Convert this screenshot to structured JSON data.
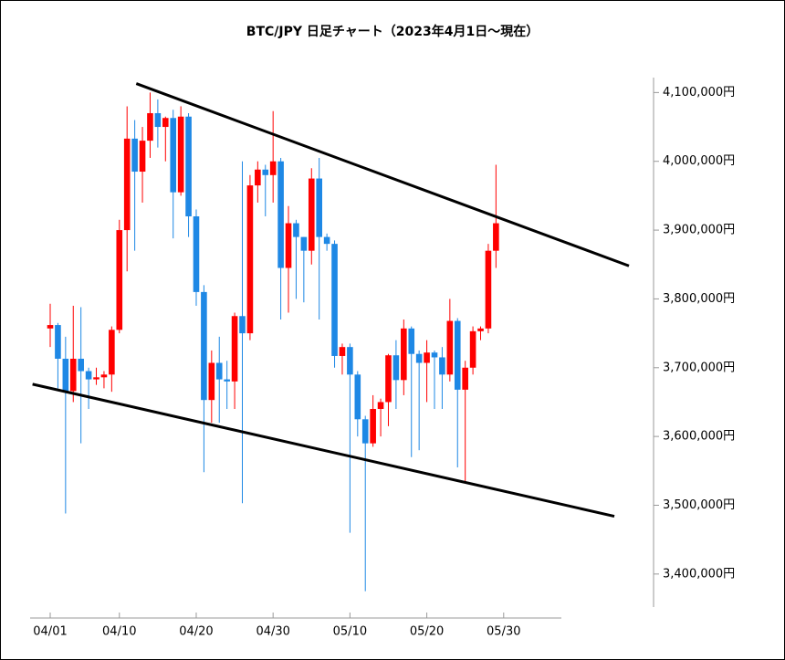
{
  "chart_data": {
    "type": "candlestick",
    "title": "BTC/JPY 日足チャート（2023年4月1日～現在）",
    "categories": [
      "04/01",
      null,
      null,
      null,
      null,
      null,
      null,
      null,
      null,
      "04/10",
      null,
      null,
      null,
      null,
      null,
      null,
      null,
      null,
      null,
      "04/20",
      null,
      null,
      null,
      null,
      null,
      null,
      null,
      null,
      null,
      "04/30",
      null,
      null,
      null,
      null,
      null,
      null,
      null,
      null,
      null,
      "05/10",
      null,
      null,
      null,
      null,
      null,
      null,
      null,
      null,
      null,
      "05/20",
      null,
      null,
      null,
      null,
      null,
      null,
      null,
      null,
      null,
      "05/30"
    ],
    "open": [
      3757000,
      3762000,
      3713000,
      3666000,
      3713000,
      3695000,
      3683000,
      3686000,
      3690000,
      3755000,
      3900000,
      4033000,
      3985000,
      4030000,
      4070000,
      4050000,
      4063000,
      3955000,
      4065000,
      3920000,
      3810000,
      3653000,
      3707000,
      3683000,
      3680000,
      3775000,
      3750000,
      3965000,
      3988000,
      3980000,
      4000000,
      3845000,
      3910000,
      3890000,
      3870000,
      3975000,
      3890000,
      3880000,
      3717000,
      3730000,
      3690000,
      3625000,
      3590000,
      3640000,
      3650000,
      3718000,
      3682000,
      3757000,
      3720000,
      3707000,
      3722000,
      3715000,
      3690000,
      3768000,
      3668000,
      3700000,
      3753000,
      3757000,
      3870000,
      null
    ],
    "high": [
      3793000,
      3765000,
      3745000,
      3790000,
      3788000,
      3700000,
      3700000,
      3695000,
      3760000,
      3915000,
      4080000,
      4060000,
      4050000,
      4100000,
      4090000,
      4065000,
      4075000,
      4080000,
      4070000,
      3930000,
      3820000,
      3725000,
      3745000,
      3710000,
      3780000,
      4000000,
      3980000,
      4000000,
      3995000,
      4073000,
      4005000,
      3935000,
      3915000,
      3890000,
      3990000,
      4005000,
      3895000,
      3885000,
      3735000,
      3735000,
      3695000,
      3630000,
      3660000,
      3655000,
      3720000,
      3740000,
      3770000,
      3760000,
      3725000,
      3740000,
      3725000,
      3730000,
      3800000,
      3772000,
      3710000,
      3760000,
      3760000,
      3880000,
      3995000,
      null
    ],
    "low": [
      3730000,
      3670000,
      3488000,
      3650000,
      3590000,
      3640000,
      3675000,
      3670000,
      3665000,
      3750000,
      3840000,
      3870000,
      3940000,
      4005000,
      4020000,
      4000000,
      3888000,
      3950000,
      3890000,
      3790000,
      3548000,
      3620000,
      3620000,
      3640000,
      3640000,
      3503000,
      3740000,
      3940000,
      3920000,
      3940000,
      3770000,
      3780000,
      3800000,
      3795000,
      3850000,
      3770000,
      3870000,
      3700000,
      3690000,
      3460000,
      3600000,
      3375000,
      3585000,
      3600000,
      3615000,
      3640000,
      3660000,
      3570000,
      3580000,
      3650000,
      3640000,
      3640000,
      3680000,
      3555000,
      3533000,
      3690000,
      3740000,
      3750000,
      3845000,
      null
    ],
    "close": [
      3762000,
      3713000,
      3666000,
      3713000,
      3695000,
      3683000,
      3686000,
      3690000,
      3755000,
      3900000,
      4033000,
      3985000,
      4030000,
      4070000,
      4050000,
      4063000,
      3955000,
      4065000,
      3920000,
      3810000,
      3653000,
      3707000,
      3683000,
      3680000,
      3775000,
      3750000,
      3965000,
      3988000,
      3980000,
      4000000,
      3845000,
      3910000,
      3890000,
      3870000,
      3975000,
      3890000,
      3880000,
      3717000,
      3730000,
      3690000,
      3625000,
      3590000,
      3640000,
      3650000,
      3718000,
      3682000,
      3757000,
      3720000,
      3707000,
      3722000,
      3715000,
      3690000,
      3768000,
      3668000,
      3700000,
      3753000,
      3757000,
      3870000,
      3910000,
      null
    ],
    "up_color": "#ff0000",
    "down_color": "#1e88e5",
    "ylim": [
      3352000,
      4135000
    ],
    "yticks": [
      {
        "value": 3400000,
        "label": "3,400,000円"
      },
      {
        "value": 3500000,
        "label": "3,500,000円"
      },
      {
        "value": 3600000,
        "label": "3,600,000円"
      },
      {
        "value": 3700000,
        "label": "3,700,000円"
      },
      {
        "value": 3800000,
        "label": "3,800,000円"
      },
      {
        "value": 3900000,
        "label": "3,900,000円"
      },
      {
        "value": 4000000,
        "label": "4,000,000円"
      },
      {
        "value": 4100000,
        "label": "4,100,000円"
      }
    ],
    "trendlines": [
      {
        "x": [
          11.2,
          75.3
        ],
        "y": [
          4113000,
          3848000
        ],
        "color": "#000000"
      },
      {
        "x": [
          -2.3,
          73.4
        ],
        "y": [
          3676000,
          3484000
        ],
        "color": "#000000"
      }
    ]
  }
}
